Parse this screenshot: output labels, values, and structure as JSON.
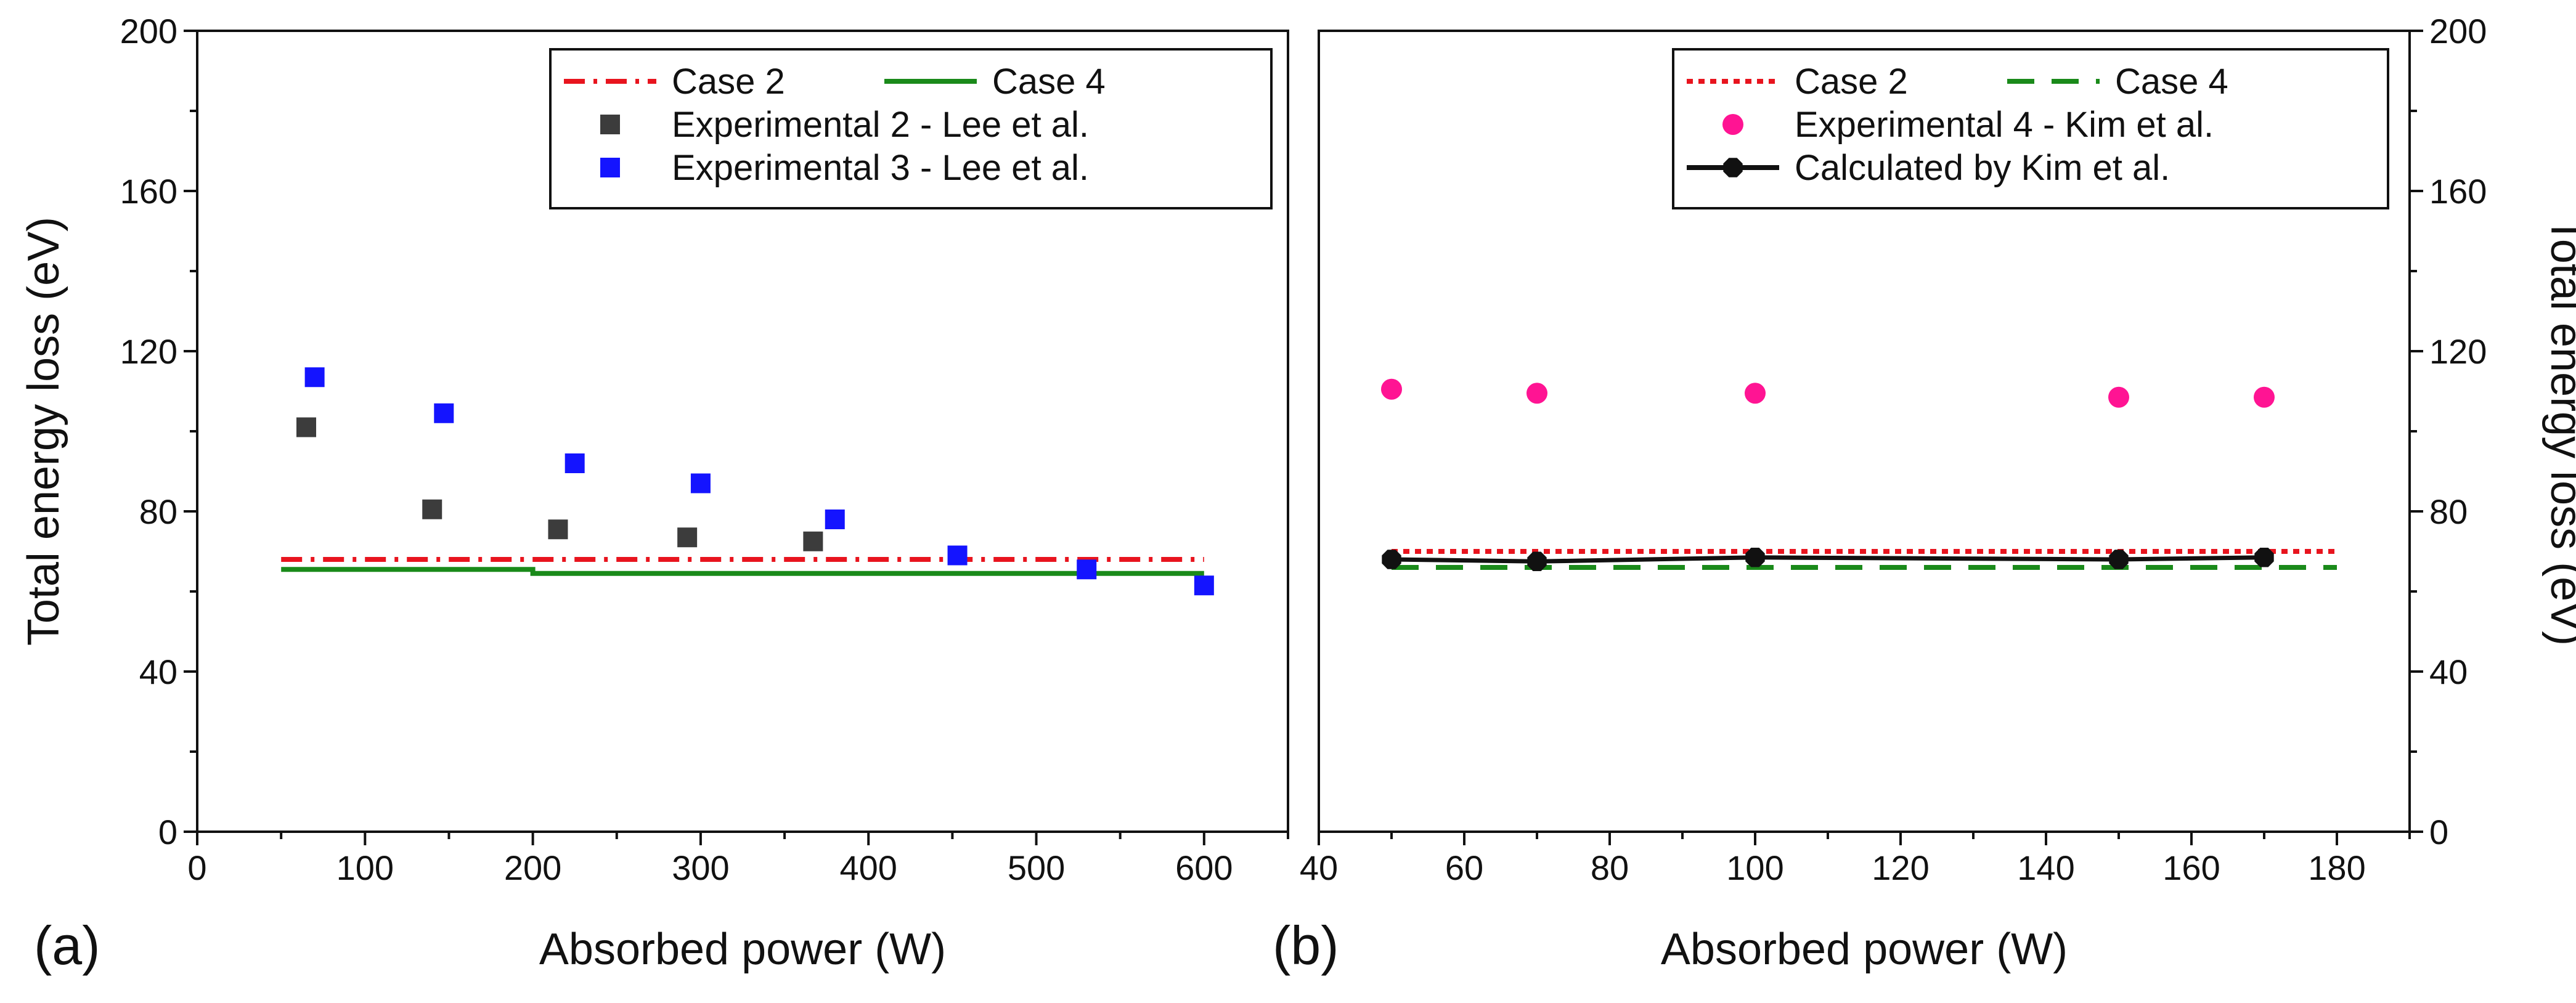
{
  "chart_data": [
    {
      "panel_label": "(a)",
      "type": "line+scatter",
      "xlabel": "Absorbed power (W)",
      "ylabel": "Total energy loss (eV)",
      "xlim": [
        0,
        650
      ],
      "ylim": [
        0,
        200
      ],
      "xticks": [
        0,
        100,
        200,
        300,
        400,
        500,
        600
      ],
      "yticks": [
        0,
        40,
        80,
        120,
        160,
        200
      ],
      "legend_position": "top-right",
      "series": [
        {
          "name": "Case 2",
          "kind": "line",
          "style": "dash-dot",
          "color": "#e8141e",
          "x": [
            50,
            600
          ],
          "y": [
            68,
            68
          ]
        },
        {
          "name": "Case 4",
          "kind": "line",
          "style": "solid",
          "color": "#1a8a1a",
          "x": [
            50,
            200,
            200,
            600
          ],
          "y": [
            65.5,
            65.5,
            64.5,
            64.5
          ]
        },
        {
          "name": "Experimental 2 - Lee et al.",
          "kind": "scatter",
          "marker": "square",
          "color": "#3c3c3c",
          "x": [
            65,
            140,
            215,
            292,
            367
          ],
          "y": [
            101,
            80.5,
            75.5,
            73.5,
            72.5
          ]
        },
        {
          "name": "Experimental 3 - Lee et al.",
          "kind": "scatter",
          "marker": "square",
          "color": "#1414ff",
          "x": [
            70,
            147,
            225,
            300,
            380,
            453,
            530,
            600
          ],
          "y": [
            113.5,
            104.5,
            92,
            87,
            78,
            69,
            65.5,
            61.5
          ]
        }
      ]
    },
    {
      "panel_label": "(b)",
      "type": "line+scatter",
      "xlabel": "Absorbed power (W)",
      "ylabel": "Total energy loss (eV)",
      "xlim": [
        40,
        190
      ],
      "ylim": [
        0,
        200
      ],
      "xticks": [
        40,
        60,
        80,
        100,
        120,
        140,
        160,
        180
      ],
      "yticks": [
        0,
        40,
        80,
        120,
        160,
        200
      ],
      "legend_position": "top-right",
      "series": [
        {
          "name": "Case 2",
          "kind": "line",
          "style": "dotted",
          "color": "#e8141e",
          "x": [
            50,
            180
          ],
          "y": [
            70,
            70
          ]
        },
        {
          "name": "Case 4",
          "kind": "line",
          "style": "dashed",
          "color": "#1a8a1a",
          "x": [
            50,
            180
          ],
          "y": [
            66,
            66
          ]
        },
        {
          "name": "Experimental 4 - Kim et al.",
          "kind": "scatter",
          "marker": "circle",
          "color": "#ff1493",
          "x": [
            50,
            70,
            100,
            150,
            170
          ],
          "y": [
            110.5,
            109.5,
            109.5,
            108.5,
            108.5
          ]
        },
        {
          "name": "Calculated by Kim et al.",
          "kind": "line+marker",
          "style": "solid",
          "marker": "octagon",
          "color": "#111111",
          "x": [
            50,
            70,
            100,
            150,
            170
          ],
          "y": [
            68,
            67.5,
            68.5,
            68,
            68.5
          ]
        }
      ]
    }
  ]
}
